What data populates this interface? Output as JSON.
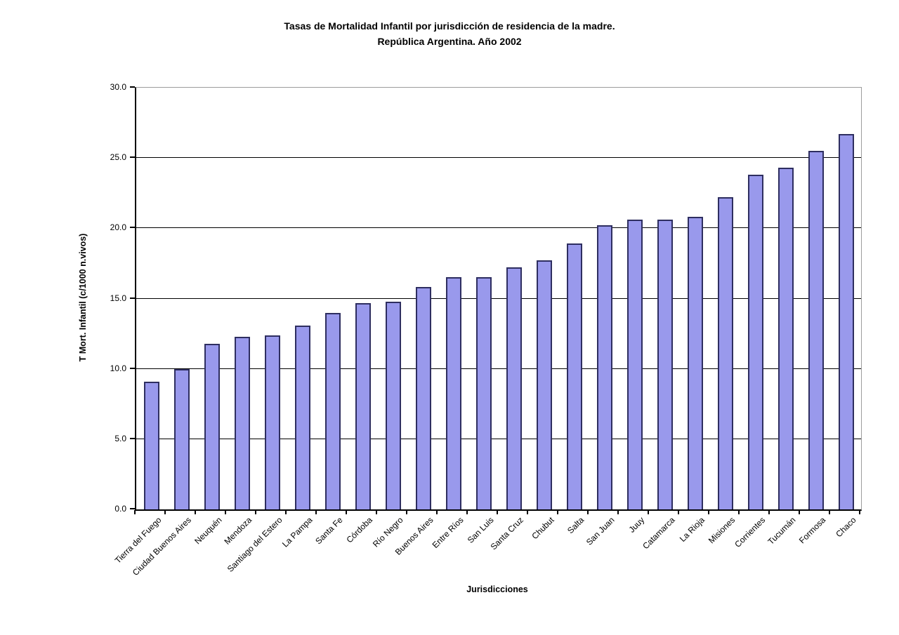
{
  "page": {
    "background": "#FFFFFF"
  },
  "chart_data": {
    "type": "bar",
    "title": "Tasas de Mortalidad Infantil por jurisdicción de residencia de la madre.",
    "subtitle": "República Argentina. Año 2002",
    "xlabel": "Jurisdicciones",
    "ylabel": "T Mort. Infantil (c/1000 n.vivos)",
    "ylim": [
      0,
      30
    ],
    "ytick_labels": [
      "0.0",
      "5.0",
      "10.0",
      "15.0",
      "20.0",
      "25.0",
      "30.0"
    ],
    "grid": "horizontal",
    "legend_position": "none",
    "categories": [
      "Tierra del Fuego",
      "Ciudad Buenos Aires",
      "Neuquén",
      "Mendoza",
      "Santiago del Estero",
      "La Pampa",
      "Santa Fe",
      "Córdoba",
      "Río Negro",
      "Buenos Aires",
      "Entre Ríos",
      "San Luis",
      "Santa Cruz",
      "Chubut",
      "Salta",
      "San Juan",
      "Juuy",
      "Catamarca",
      "La Rioja",
      "Misiones",
      "Corrientes",
      "Tucumán",
      "Formosa",
      "Chaco"
    ],
    "values": [
      9.1,
      10.0,
      11.8,
      12.3,
      12.4,
      13.1,
      14.0,
      14.7,
      14.8,
      15.8,
      16.5,
      16.5,
      17.2,
      17.7,
      18.9,
      20.2,
      20.6,
      20.6,
      20.8,
      22.2,
      23.8,
      24.3,
      25.5,
      26.7
    ],
    "colors": {
      "bar_fill": "#9999EC",
      "bar_border": "#2E2E60",
      "gridline": "#000000",
      "axis": "#000000",
      "plot_border": "#9C9C9C"
    }
  }
}
